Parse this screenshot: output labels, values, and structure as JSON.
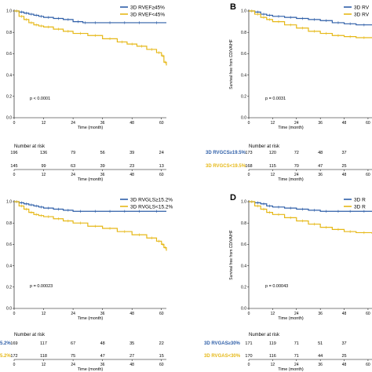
{
  "colors": {
    "blue": "#2f5fa8",
    "gold": "#e6b817"
  },
  "risk_title": "Number at risk",
  "chart_data": [
    {
      "panel": "",
      "type": "line",
      "ylabel": "",
      "xlabel": "Time (month)",
      "xlim": [
        0,
        62
      ],
      "ylim": [
        0,
        1.0
      ],
      "xticks": [
        0,
        12,
        24,
        36,
        48,
        60
      ],
      "yticks": [
        0.0,
        0.2,
        0.4,
        0.6,
        0.8,
        1.0
      ],
      "p_value": "p < 0.0001",
      "series": [
        {
          "name": "3D RVEF≥45%",
          "color": "blue",
          "x": [
            0,
            2,
            4,
            6,
            8,
            10,
            12,
            16,
            20,
            24,
            28,
            30,
            36,
            42,
            48,
            54,
            62
          ],
          "y": [
            1.0,
            0.99,
            0.98,
            0.97,
            0.96,
            0.95,
            0.94,
            0.93,
            0.92,
            0.9,
            0.89,
            0.89,
            0.89,
            0.89,
            0.89,
            0.89,
            0.89
          ]
        },
        {
          "name": "3D RVEF<45%",
          "color": "gold",
          "x": [
            0,
            2,
            4,
            6,
            8,
            10,
            12,
            16,
            20,
            24,
            30,
            36,
            42,
            46,
            50,
            54,
            58,
            60,
            61,
            62
          ],
          "y": [
            1.0,
            0.95,
            0.92,
            0.89,
            0.87,
            0.86,
            0.85,
            0.83,
            0.81,
            0.79,
            0.77,
            0.74,
            0.71,
            0.69,
            0.67,
            0.64,
            0.61,
            0.58,
            0.52,
            0.49
          ]
        }
      ],
      "risk": [
        {
          "label": "",
          "values": [
            196,
            136,
            79,
            56,
            39,
            24
          ],
          "color": "blue"
        },
        {
          "label": "",
          "values": [
            145,
            99,
            63,
            39,
            23,
            13
          ],
          "color": "gold"
        }
      ]
    },
    {
      "panel": "B",
      "type": "line",
      "ylabel": "Survival free from CD/VA/HF",
      "xlabel": "Time (month)",
      "xlim": [
        0,
        62
      ],
      "ylim": [
        0,
        1.0
      ],
      "xticks": [
        0,
        12,
        24,
        36,
        48,
        60
      ],
      "yticks": [
        0.0,
        0.2,
        0.4,
        0.6,
        0.8,
        1.0
      ],
      "p_value": "p = 0.0031",
      "series": [
        {
          "name": "3D RV",
          "color": "blue",
          "x": [
            0,
            3,
            6,
            9,
            12,
            18,
            24,
            30,
            36,
            42,
            48,
            54,
            62
          ],
          "y": [
            1.0,
            0.99,
            0.97,
            0.96,
            0.95,
            0.94,
            0.93,
            0.92,
            0.91,
            0.89,
            0.88,
            0.87,
            0.87
          ]
        },
        {
          "name": "3D RV",
          "color": "gold",
          "x": [
            0,
            3,
            6,
            9,
            12,
            18,
            24,
            30,
            36,
            42,
            48,
            54,
            62
          ],
          "y": [
            1.0,
            0.97,
            0.94,
            0.92,
            0.9,
            0.87,
            0.84,
            0.81,
            0.79,
            0.77,
            0.76,
            0.75,
            0.75
          ]
        }
      ],
      "risk": [
        {
          "label": "3D RVGCS≥19.5%",
          "values": [
            173,
            120,
            72,
            48,
            37
          ],
          "color": "blue"
        },
        {
          "label": "3D RVGCS<19.5%",
          "values": [
            168,
            115,
            70,
            47,
            25
          ],
          "color": "gold"
        }
      ]
    },
    {
      "panel": "",
      "type": "line",
      "ylabel": "",
      "xlabel": "Time (month)",
      "xlim": [
        0,
        62
      ],
      "ylim": [
        0,
        1.0
      ],
      "xticks": [
        0,
        12,
        24,
        36,
        48,
        60
      ],
      "yticks": [
        0.0,
        0.2,
        0.4,
        0.6,
        0.8,
        1.0
      ],
      "p_value": "p = 0.00023",
      "series": [
        {
          "name": "3D RVGLS≥15.2%",
          "color": "blue",
          "x": [
            0,
            2,
            4,
            6,
            8,
            10,
            12,
            16,
            20,
            24,
            30,
            36,
            42,
            48,
            54,
            62
          ],
          "y": [
            1.0,
            0.99,
            0.98,
            0.97,
            0.96,
            0.95,
            0.94,
            0.93,
            0.92,
            0.91,
            0.91,
            0.91,
            0.91,
            0.91,
            0.91,
            0.91
          ]
        },
        {
          "name": "3D RVGLS<15.2%",
          "color": "gold",
          "x": [
            0,
            2,
            4,
            6,
            8,
            10,
            12,
            16,
            20,
            24,
            30,
            36,
            42,
            48,
            54,
            58,
            60,
            61,
            62
          ],
          "y": [
            1.0,
            0.96,
            0.93,
            0.9,
            0.88,
            0.87,
            0.86,
            0.84,
            0.82,
            0.8,
            0.77,
            0.75,
            0.72,
            0.69,
            0.66,
            0.63,
            0.6,
            0.57,
            0.54
          ]
        }
      ],
      "risk": [
        {
          "label": "5.2%",
          "values": [
            169,
            117,
            67,
            48,
            35,
            22
          ],
          "color": "blue"
        },
        {
          "label": "5.2%",
          "values": [
            172,
            118,
            75,
            47,
            27,
            15
          ],
          "color": "gold"
        }
      ]
    },
    {
      "panel": "D",
      "type": "line",
      "ylabel": "Survival free from CD/VA/HF",
      "xlabel": "Time (month)",
      "xlim": [
        0,
        62
      ],
      "ylim": [
        0,
        1.0
      ],
      "xticks": [
        0,
        12,
        24,
        36,
        48,
        60
      ],
      "yticks": [
        0.0,
        0.2,
        0.4,
        0.6,
        0.8,
        1.0
      ],
      "p_value": "p = 0.00043",
      "series": [
        {
          "name": "3D R",
          "color": "blue",
          "x": [
            0,
            3,
            6,
            9,
            12,
            18,
            24,
            30,
            36,
            42,
            48,
            54,
            62
          ],
          "y": [
            1.0,
            0.99,
            0.98,
            0.96,
            0.95,
            0.94,
            0.93,
            0.92,
            0.91,
            0.91,
            0.91,
            0.91,
            0.91
          ]
        },
        {
          "name": "3D R",
          "color": "gold",
          "x": [
            0,
            3,
            6,
            9,
            12,
            18,
            24,
            30,
            36,
            42,
            48,
            54,
            62
          ],
          "y": [
            1.0,
            0.96,
            0.93,
            0.9,
            0.88,
            0.85,
            0.82,
            0.79,
            0.76,
            0.74,
            0.72,
            0.71,
            0.7
          ]
        }
      ],
      "risk": [
        {
          "label": "3D RVGAS≥30%",
          "values": [
            171,
            119,
            71,
            51,
            37
          ],
          "color": "blue"
        },
        {
          "label": "3D RVGAS<30%",
          "values": [
            170,
            116,
            71,
            44,
            25
          ],
          "color": "gold"
        }
      ]
    }
  ]
}
